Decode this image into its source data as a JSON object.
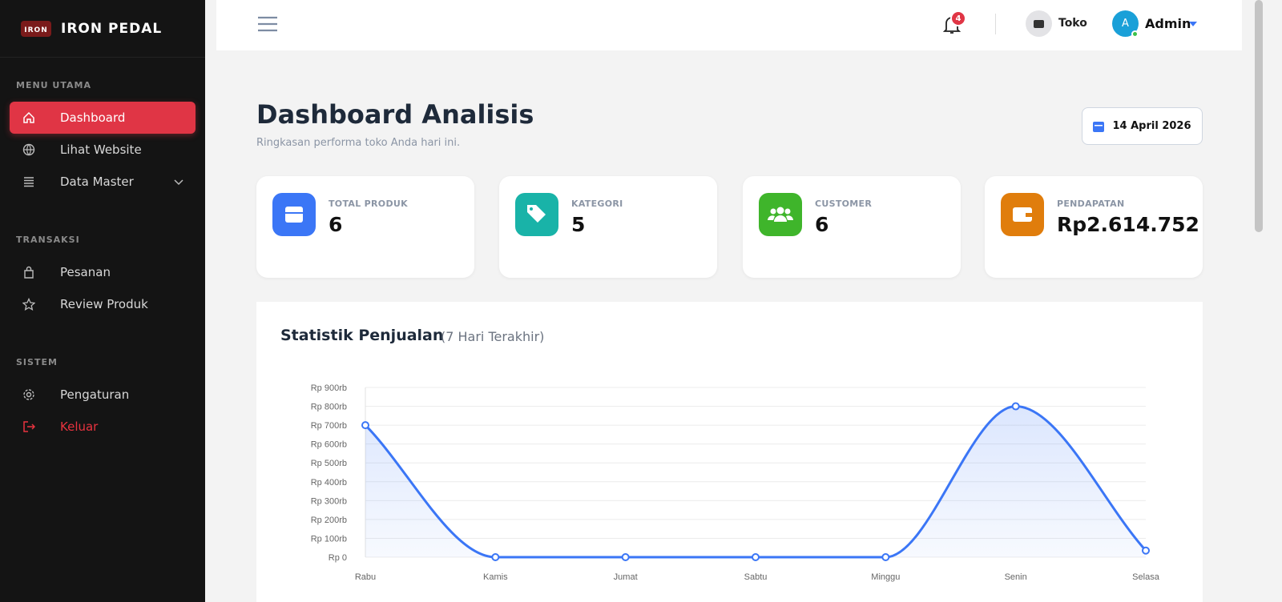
{
  "sidebar": {
    "brand": "IRON PEDAL",
    "sections": [
      {
        "title": "MENU UTAMA",
        "items": [
          "Dashboard",
          "Lihat Website",
          "Data Master"
        ]
      },
      {
        "title": "TRANSAKSI",
        "items": [
          "Pesanan",
          "Review Produk"
        ]
      },
      {
        "title": "SISTEM",
        "items": [
          "Pengaturan",
          "Keluar"
        ]
      }
    ]
  },
  "topbar": {
    "notifications": 4,
    "store": "Toko",
    "avatar": "A",
    "user": "Admin"
  },
  "header": {
    "title": "Dashboard Analisis",
    "subtitle": "Ringkasan performa toko Anda hari ini.",
    "date": "14 April 2026"
  },
  "stats": [
    {
      "label": "TOTAL PRODUK",
      "value": 6
    },
    {
      "label": "KATEGORI",
      "value": 5
    },
    {
      "label": "CUSTOMER",
      "value": 6
    },
    {
      "label": "PENDAPATAN",
      "value": "Rp2.614.752"
    }
  ],
  "chart_data": {
    "type": "line",
    "title": "Statistik Penjualan",
    "subtitle": "(7 Hari Terakhir)",
    "categories": [
      "Rabu",
      "Kamis",
      "Jumat",
      "Sabtu",
      "Minggu",
      "Senin",
      "Selasa"
    ],
    "series": [
      {
        "color": "#3b76f6",
        "values": [
          700000,
          0,
          0,
          0,
          0,
          800000,
          35000
        ]
      }
    ],
    "ylim": [
      0,
      900000
    ],
    "yticks": [
      {
        "value": 0,
        "label": "Rp 0"
      },
      {
        "value": 100000,
        "label": "Rp 100rb"
      },
      {
        "value": 200000,
        "label": "Rp 200rb"
      },
      {
        "value": 300000,
        "label": "Rp 300rb"
      },
      {
        "value": 400000,
        "label": "Rp 400rb"
      },
      {
        "value": 500000,
        "label": "Rp 500rb"
      },
      {
        "value": 600000,
        "label": "Rp 600rb"
      },
      {
        "value": 700000,
        "label": "Rp 700rb"
      },
      {
        "value": 800000,
        "label": "Rp 800rb"
      },
      {
        "value": 900000,
        "label": "Rp 900rb"
      }
    ],
    "grid": true
  }
}
